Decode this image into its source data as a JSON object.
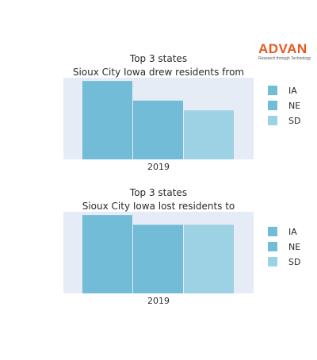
{
  "logo": {
    "name": "ADVAN",
    "tagline": "Research through Technology",
    "color": "#e8581e"
  },
  "chart_data": [
    {
      "type": "bar",
      "title": [
        "Top 3 states",
        "Sioux City Iowa drew residents from"
      ],
      "categories": [
        "2019"
      ],
      "series": [
        {
          "name": "IA",
          "values": [
            12.0
          ],
          "color": "#73bcd8"
        },
        {
          "name": "NE",
          "values": [
            9.0
          ],
          "color": "#73bcd8"
        },
        {
          "name": "SD",
          "values": [
            7.5
          ],
          "color": "#9dd1e4"
        }
      ],
      "ylim": [
        0,
        12.5
      ],
      "grid": false,
      "legend": "right",
      "plot_bg": "#e5ecf6"
    },
    {
      "type": "bar",
      "title": [
        "Top 3 states",
        "Sioux City Iowa lost residents to"
      ],
      "categories": [
        "2019"
      ],
      "series": [
        {
          "name": "IA",
          "values": [
            12.0
          ],
          "color": "#73bcd8"
        },
        {
          "name": "NE",
          "values": [
            10.5
          ],
          "color": "#73bcd8"
        },
        {
          "name": "SD",
          "values": [
            10.5
          ],
          "color": "#9dd1e4"
        }
      ],
      "ylim": [
        0,
        12.5
      ],
      "grid": false,
      "legend": "right",
      "plot_bg": "#e5ecf6"
    }
  ]
}
